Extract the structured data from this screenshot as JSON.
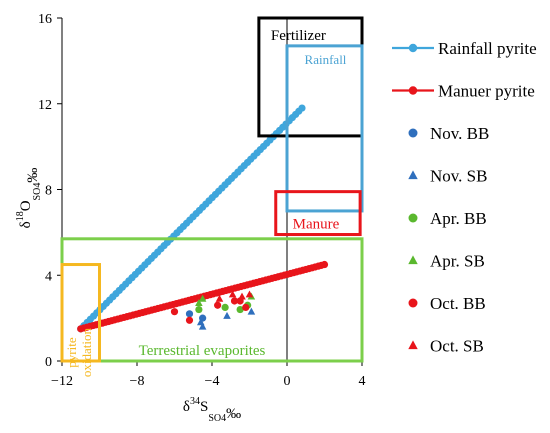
{
  "chart_data": {
    "type": "scatter",
    "xlabel": {
      "base": "δ",
      "sup": "34",
      "main": "S",
      "sub": "SO4",
      "unit": "‰"
    },
    "ylabel": {
      "base": "δ",
      "sup": "18",
      "main": "O",
      "sub": "SO4",
      "unit": "‰"
    },
    "xlim": [
      -12,
      4
    ],
    "ylim": [
      0,
      16
    ],
    "xticks": [
      -12,
      -8,
      -4,
      0,
      4
    ],
    "xtick_labels": [
      "−12",
      "−8",
      "−4",
      "0",
      "4"
    ],
    "yticks": [
      0,
      4,
      8,
      12,
      16
    ],
    "ytick_labels": [
      "0",
      "4",
      "8",
      "12",
      "16"
    ],
    "grid": false,
    "legend_position": "right",
    "boxes": [
      {
        "label": "Fertilizer",
        "x": [
          -1.5,
          4
        ],
        "y": [
          10.5,
          16
        ],
        "color": "#000000",
        "label_color": "#000000",
        "label_anchor": "top-left"
      },
      {
        "label": "Rainfall",
        "x": [
          0,
          4
        ],
        "y": [
          7,
          14.7
        ],
        "color": "#4ba3d3",
        "label_color": "#4ba3d3",
        "label_anchor": "top-center"
      },
      {
        "label": "Manure",
        "x": [
          -0.6,
          3.9
        ],
        "y": [
          5.9,
          7.9
        ],
        "color": "#e8151b",
        "label_color": "#e8151b",
        "label_anchor": "bottom-center"
      },
      {
        "label": "Terrestrial evaporites",
        "x": [
          -12,
          4
        ],
        "y": [
          0,
          5.7
        ],
        "color": "#7ccf4b",
        "label_color": "#5ab82e",
        "label_anchor": "bottom-center"
      },
      {
        "label": "pyrite oxidation",
        "label_lines": [
          "pyrite",
          "oxidation"
        ],
        "x": [
          -12,
          -10
        ],
        "y": [
          0,
          4.5
        ],
        "color": "#f5b820",
        "label_color": "#f5b820",
        "label_anchor": "vertical"
      }
    ],
    "series": [
      {
        "name": "Rainfall pyrite",
        "marker": "circle",
        "color": "#3fa6dc",
        "line": true,
        "x_range": [
          -11,
          0.8
        ],
        "y_range": [
          1.5,
          11.8
        ],
        "n": 70
      },
      {
        "name": "Manuer pyrite",
        "marker": "circle",
        "color": "#e8151b",
        "line": true,
        "x_range": [
          -11,
          2
        ],
        "y_range": [
          1.5,
          4.5
        ],
        "n": 80
      },
      {
        "name": "Nov. BB",
        "marker": "circle",
        "color": "#2f6fbd",
        "points": [
          [
            -5.2,
            2.2
          ],
          [
            -4.5,
            2.0
          ]
        ]
      },
      {
        "name": "Nov. SB",
        "marker": "triangle",
        "color": "#2f6fbd",
        "points": [
          [
            -4.6,
            1.8
          ],
          [
            -4.5,
            1.6
          ],
          [
            -3.2,
            2.1
          ],
          [
            -1.9,
            2.3
          ]
        ]
      },
      {
        "name": "Apr. BB",
        "marker": "circle",
        "color": "#5ab82e",
        "points": [
          [
            -4.7,
            2.4
          ],
          [
            -3.3,
            2.5
          ],
          [
            -2.5,
            2.4
          ],
          [
            -2.1,
            2.6
          ]
        ]
      },
      {
        "name": "Apr. SB",
        "marker": "triangle",
        "color": "#5ab82e",
        "points": [
          [
            -4.7,
            2.7
          ],
          [
            -4.5,
            2.9
          ],
          [
            -1.9,
            3.0
          ]
        ]
      },
      {
        "name": "Oct. BB",
        "marker": "circle",
        "color": "#e8151b",
        "points": [
          [
            -6.0,
            2.3
          ],
          [
            -5.2,
            1.9
          ],
          [
            -3.7,
            2.6
          ],
          [
            -2.8,
            2.8
          ],
          [
            -2.5,
            2.8
          ],
          [
            -2.2,
            2.5
          ]
        ]
      },
      {
        "name": "Oct. SB",
        "marker": "triangle",
        "color": "#e8151b",
        "points": [
          [
            -3.6,
            2.9
          ],
          [
            -2.9,
            3.1
          ],
          [
            -2.4,
            3.0
          ],
          [
            -2.0,
            3.1
          ]
        ]
      }
    ]
  }
}
